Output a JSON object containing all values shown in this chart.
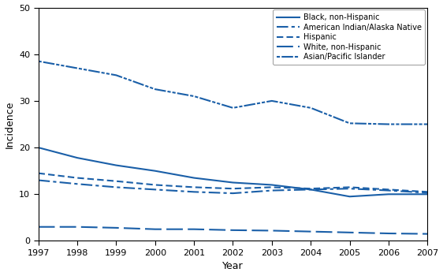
{
  "years": [
    1997,
    1998,
    1999,
    2000,
    2001,
    2002,
    2003,
    2004,
    2005,
    2006,
    2007
  ],
  "black_non_hispanic": [
    20.0,
    17.8,
    16.2,
    15.0,
    13.5,
    12.5,
    12.0,
    11.0,
    9.5,
    10.0,
    10.0
  ],
  "american_indian": [
    13.0,
    12.2,
    11.5,
    11.0,
    10.5,
    10.2,
    10.8,
    11.0,
    11.2,
    10.8,
    10.3
  ],
  "hispanic": [
    14.5,
    13.5,
    12.8,
    12.0,
    11.5,
    11.2,
    11.5,
    11.2,
    11.5,
    11.0,
    10.5
  ],
  "white_non_hispanic": [
    3.0,
    3.0,
    2.8,
    2.5,
    2.5,
    2.3,
    2.2,
    2.0,
    1.8,
    1.6,
    1.5
  ],
  "asian_pacific": [
    38.5,
    37.0,
    35.5,
    32.5,
    31.0,
    28.5,
    30.0,
    28.5,
    25.2,
    25.0,
    25.0
  ],
  "color": "#1a5fa8",
  "xlabel": "Year",
  "ylabel": "Incidence",
  "ylim": [
    0,
    50
  ],
  "yticks": [
    0,
    10,
    20,
    30,
    40,
    50
  ],
  "legend_labels": [
    "Black, non-Hispanic",
    "American Indian/Alaska Native",
    "Hispanic",
    "White, non-Hispanic",
    "Asian/Pacific Islander"
  ]
}
